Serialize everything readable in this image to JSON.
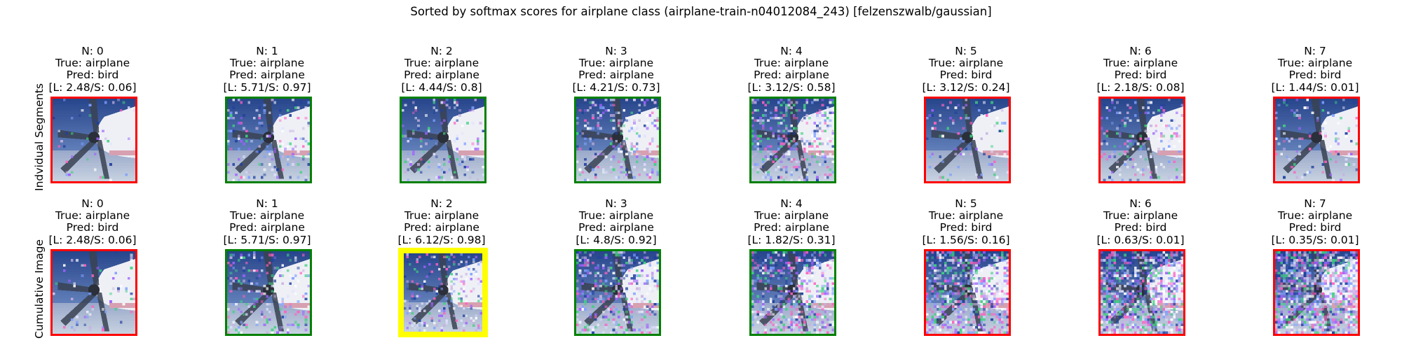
{
  "suptitle": "Sorted by softmax scores for airplane class (airplane-train-n04012084_243) [felzenszwalb/gaussian]",
  "chart_data": {
    "type": "image-grid",
    "title": "Sorted by softmax scores for airplane class (airplane-train-n04012084_243) [felzenszwalb/gaussian]",
    "row_labels": [
      "Indvidual Segments",
      "Cumulative Image"
    ],
    "border_colors": {
      "correct": "#008000",
      "incorrect": "#ff0000",
      "best": "#ffff00"
    },
    "rows": [
      {
        "label": "Indvidual Segments",
        "panels": [
          {
            "n": "N: 0",
            "true": "True: airplane",
            "pred": "Pred: bird",
            "scores": "[L: 2.48/S: 0.06]",
            "border": "incorrect",
            "noise": 0.05
          },
          {
            "n": "N: 1",
            "true": "True: airplane",
            "pred": "Pred: airplane",
            "scores": "[L: 5.71/S: 0.97]",
            "border": "correct",
            "noise": 0.18
          },
          {
            "n": "N: 2",
            "true": "True: airplane",
            "pred": "Pred: airplane",
            "scores": "[L: 4.44/S: 0.8]",
            "border": "correct",
            "noise": 0.12
          },
          {
            "n": "N: 3",
            "true": "True: airplane",
            "pred": "Pred: airplane",
            "scores": "[L: 4.21/S: 0.73]",
            "border": "correct",
            "noise": 0.2
          },
          {
            "n": "N: 4",
            "true": "True: airplane",
            "pred": "Pred: airplane",
            "scores": "[L: 3.12/S: 0.58]",
            "border": "correct",
            "noise": 0.3
          },
          {
            "n": "N: 5",
            "true": "True: airplane",
            "pred": "Pred: bird",
            "scores": "[L: 3.12/S: 0.24]",
            "border": "incorrect",
            "noise": 0.12
          },
          {
            "n": "N: 6",
            "true": "True: airplane",
            "pred": "Pred: bird",
            "scores": "[L: 2.18/S: 0.08]",
            "border": "incorrect",
            "noise": 0.15
          },
          {
            "n": "N: 7",
            "true": "True: airplane",
            "pred": "Pred: bird",
            "scores": "[L: 1.44/S: 0.01]",
            "border": "incorrect",
            "noise": 0.1
          }
        ]
      },
      {
        "label": "Cumulative Image",
        "panels": [
          {
            "n": "N: 0",
            "true": "True: airplane",
            "pred": "Pred: bird",
            "scores": "[L: 2.48/S: 0.06]",
            "border": "incorrect",
            "noise": 0.05
          },
          {
            "n": "N: 1",
            "true": "True: airplane",
            "pred": "Pred: airplane",
            "scores": "[L: 5.71/S: 0.97]",
            "border": "correct",
            "noise": 0.18
          },
          {
            "n": "N: 2",
            "true": "True: airplane",
            "pred": "Pred: airplane",
            "scores": "[L: 6.12/S: 0.98]",
            "border": "best",
            "noise": 0.22
          },
          {
            "n": "N: 3",
            "true": "True: airplane",
            "pred": "Pred: airplane",
            "scores": "[L: 4.8/S: 0.92]",
            "border": "correct",
            "noise": 0.32
          },
          {
            "n": "N: 4",
            "true": "True: airplane",
            "pred": "Pred: airplane",
            "scores": "[L: 1.82/S: 0.31]",
            "border": "correct",
            "noise": 0.45
          },
          {
            "n": "N: 5",
            "true": "True: airplane",
            "pred": "Pred: bird",
            "scores": "[L: 1.56/S: 0.16]",
            "border": "incorrect",
            "noise": 0.55
          },
          {
            "n": "N: 6",
            "true": "True: airplane",
            "pred": "Pred: bird",
            "scores": "[L: 0.63/S: 0.01]",
            "border": "incorrect",
            "noise": 0.65
          },
          {
            "n": "N: 7",
            "true": "True: airplane",
            "pred": "Pred: bird",
            "scores": "[L: 0.35/S: 0.01]",
            "border": "incorrect",
            "noise": 0.72
          }
        ]
      }
    ]
  }
}
